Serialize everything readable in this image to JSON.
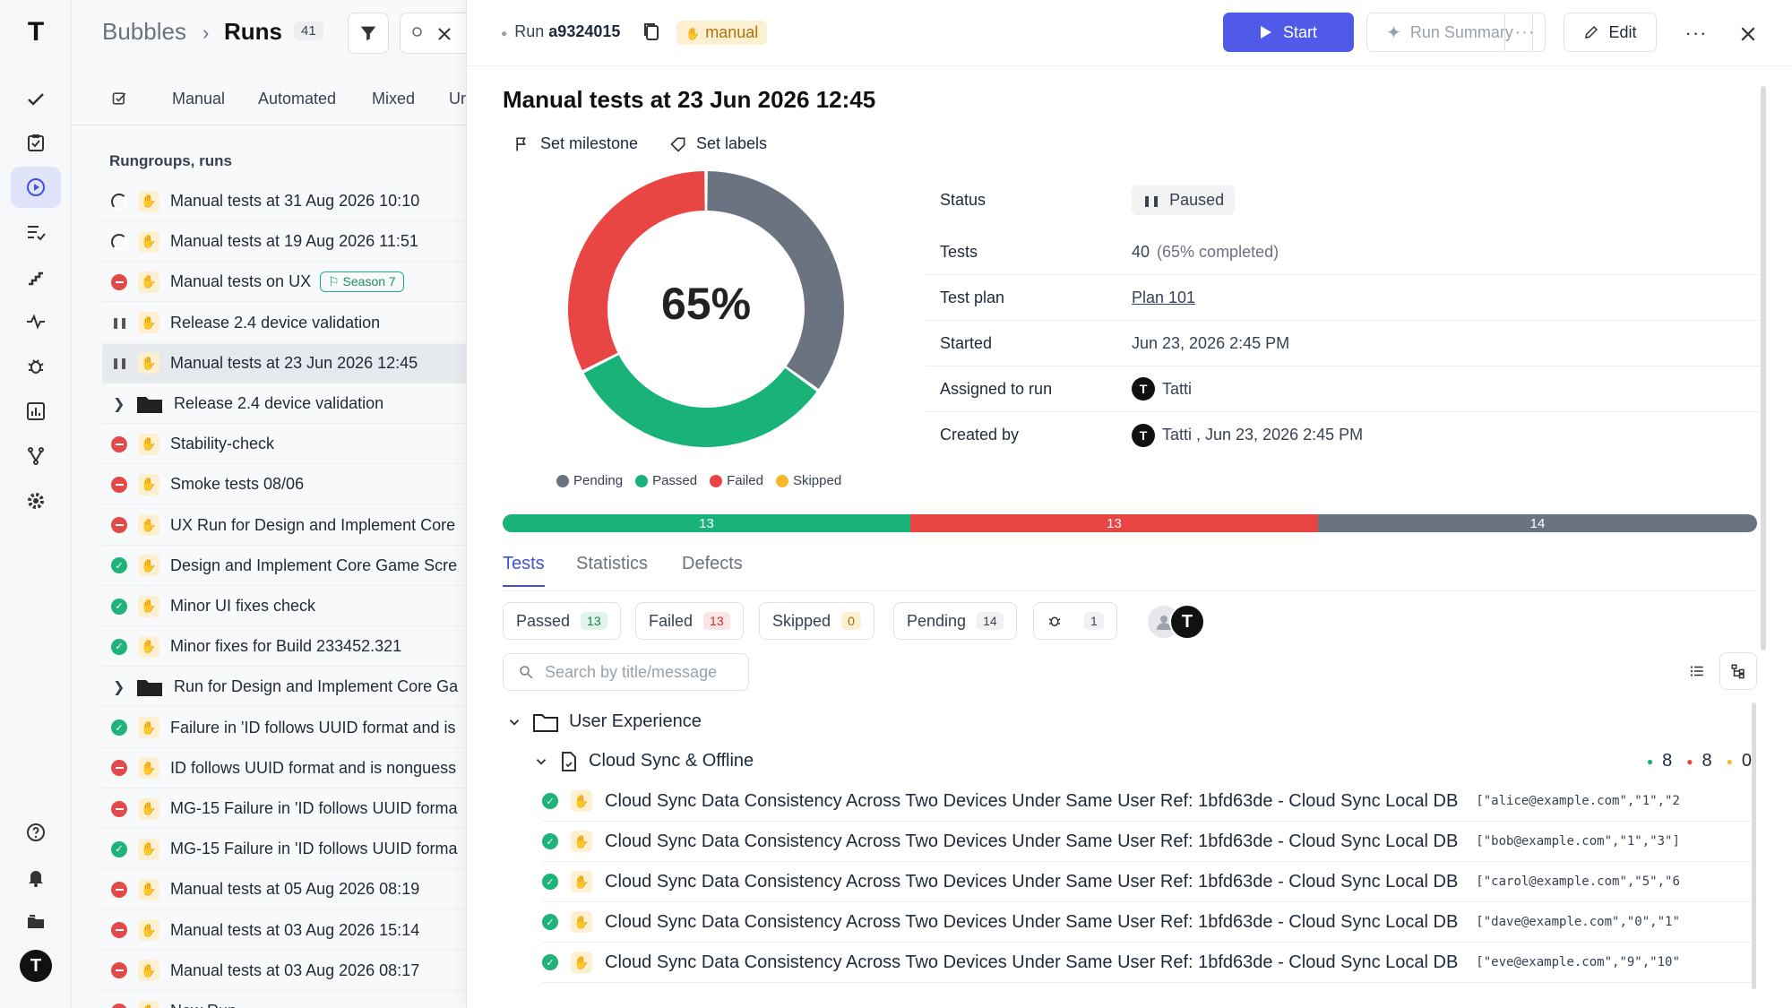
{
  "rail": {
    "logo": "T",
    "icons": [
      "check-icon",
      "clipboard-check-icon",
      "play-circle-icon",
      "list-check-icon",
      "stairs-icon",
      "pulse-icon",
      "bug-icon",
      "chart-icon",
      "branch-icon",
      "gear-icon",
      "help-icon",
      "bell-icon",
      "projects-icon"
    ],
    "user_initial": "T"
  },
  "list": {
    "breadcrumb_project": "Bubbles",
    "breadcrumb_sep": "›",
    "breadcrumb_page": "Runs",
    "runs_count": "41",
    "tabs": [
      "Manual",
      "Automated",
      "Mixed",
      "Ur"
    ],
    "section_title": "Rungroups, runs",
    "rows": [
      {
        "status": "half",
        "kind": "run",
        "title": "Manual tests at 31 Aug 2026 10:10"
      },
      {
        "status": "half",
        "kind": "run",
        "title": "Manual tests at 19 Aug 2026 11:51"
      },
      {
        "status": "fail",
        "kind": "run",
        "title": "Manual tests on UX",
        "badge": "Season 7"
      },
      {
        "status": "pause",
        "kind": "run",
        "title": "Release 2.4 device validation"
      },
      {
        "status": "pause",
        "kind": "run",
        "title": "Manual tests at 23 Jun 2026 12:45",
        "selected": true
      },
      {
        "status": "group",
        "kind": "group",
        "title": "Release 2.4 device validation"
      },
      {
        "status": "fail",
        "kind": "run",
        "title": "Stability-check"
      },
      {
        "status": "fail",
        "kind": "run",
        "title": "Smoke tests 08/06"
      },
      {
        "status": "fail",
        "kind": "run",
        "title": "UX Run for Design and Implement Core"
      },
      {
        "status": "pass",
        "kind": "run",
        "title": "Design and Implement Core Game Scre"
      },
      {
        "status": "pass",
        "kind": "run",
        "title": "Minor UI fixes check"
      },
      {
        "status": "pass",
        "kind": "run",
        "title": "Minor fixes for Build 233452.321"
      },
      {
        "status": "group",
        "kind": "group",
        "title": "Run for Design and Implement Core Ga"
      },
      {
        "status": "pass",
        "kind": "run",
        "title": "Failure in 'ID follows UUID format and is"
      },
      {
        "status": "fail",
        "kind": "run",
        "title": "ID follows UUID format and is nonguess"
      },
      {
        "status": "fail",
        "kind": "run",
        "title": "MG-15 Failure in 'ID follows UUID forma"
      },
      {
        "status": "pass",
        "kind": "run",
        "title": "MG-15 Failure in 'ID follows UUID forma"
      },
      {
        "status": "fail",
        "kind": "run",
        "title": "Manual tests at 05 Aug 2026 08:19"
      },
      {
        "status": "fail",
        "kind": "run",
        "title": "Manual tests at 03 Aug 2026 15:14"
      },
      {
        "status": "fail",
        "kind": "run",
        "title": "Manual tests at 03 Aug 2026 08:17"
      },
      {
        "status": "fail",
        "kind": "run",
        "title": "New Run"
      }
    ]
  },
  "run": {
    "run_prefix": "Run",
    "run_id": "a9324015",
    "type_badge": "manual",
    "start_label": "Start",
    "summary_label": "Run Summary",
    "edit_label": "Edit",
    "title": "Manual tests at 23 Jun 2026 12:45",
    "set_milestone": "Set milestone",
    "set_labels": "Set labels"
  },
  "details": {
    "status_label": "Status",
    "status_value": "Paused",
    "tests_label": "Tests",
    "tests_value": "40",
    "tests_completed": "(65% completed)",
    "plan_label": "Test plan",
    "plan_value": "Plan 101",
    "started_label": "Started",
    "started_value": "Jun 23, 2026 2:45 PM",
    "assigned_label": "Assigned to run",
    "assigned_value": "Tatti",
    "created_label": "Created by",
    "created_value": "Tatti , Jun 23, 2026 2:45 PM"
  },
  "chart_data": {
    "type": "pie",
    "center_label": "65%",
    "categories": [
      "Pending",
      "Passed",
      "Failed",
      "Skipped"
    ],
    "values": [
      14,
      13,
      13,
      0
    ],
    "colors": [
      "#6b7280",
      "#19b37a",
      "#ea4545",
      "#f6b829"
    ]
  },
  "progress_bar": {
    "segments": [
      {
        "label": "13",
        "value": 13,
        "color": "#19b37a"
      },
      {
        "label": "13",
        "value": 13,
        "color": "#ea4545"
      },
      {
        "label": "14",
        "value": 14,
        "color": "#6b7280"
      }
    ]
  },
  "tabs": {
    "tests": "Tests",
    "statistics": "Statistics",
    "defects": "Defects"
  },
  "filters": {
    "passed": "Passed",
    "passed_count": "13",
    "failed": "Failed",
    "failed_count": "13",
    "skipped": "Skipped",
    "skipped_count": "0",
    "pending": "Pending",
    "pending_count": "14",
    "bugs_count": "1"
  },
  "search": {
    "placeholder": "Search by title/message"
  },
  "tree": {
    "suite": "User Experience",
    "subsuite": "Cloud Sync & Offline",
    "stat_passed": "8",
    "stat_failed": "8",
    "stat_skipped": "0",
    "tests": [
      {
        "title": "Cloud Sync Data Consistency Across Two Devices Under Same User Ref: 1bfd63de - Cloud Sync Local DB",
        "example": "[\"alice@example.com\",\"1\",\"2"
      },
      {
        "title": "Cloud Sync Data Consistency Across Two Devices Under Same User Ref: 1bfd63de - Cloud Sync Local DB",
        "example": "[\"bob@example.com\",\"1\",\"3\"]"
      },
      {
        "title": "Cloud Sync Data Consistency Across Two Devices Under Same User Ref: 1bfd63de - Cloud Sync Local DB",
        "example": "[\"carol@example.com\",\"5\",\"6"
      },
      {
        "title": "Cloud Sync Data Consistency Across Two Devices Under Same User Ref: 1bfd63de - Cloud Sync Local DB",
        "example": "[\"dave@example.com\",\"0\",\"1\""
      },
      {
        "title": "Cloud Sync Data Consistency Across Two Devices Under Same User Ref: 1bfd63de - Cloud Sync Local DB",
        "example": "[\"eve@example.com\",\"9\",\"10\""
      }
    ]
  }
}
